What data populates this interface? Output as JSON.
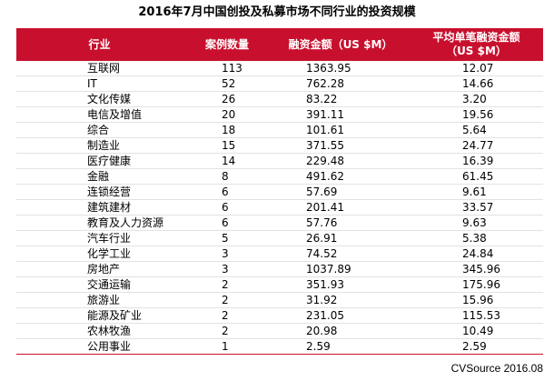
{
  "title": "2016年7月中国创投及私募市场不同行业的投资规模",
  "headers": {
    "industry": "行业",
    "cases": "案例数量",
    "amount": "融资金额（US $M）",
    "average": "平均单笔融资金额（US $M）"
  },
  "rows": [
    {
      "industry": "互联网",
      "cases": "113",
      "amount": "1363.95",
      "average": "12.07"
    },
    {
      "industry": "IT",
      "cases": "52",
      "amount": "762.28",
      "average": "14.66"
    },
    {
      "industry": "文化传媒",
      "cases": "26",
      "amount": "83.22",
      "average": "3.20"
    },
    {
      "industry": "电信及增值",
      "cases": "20",
      "amount": "391.11",
      "average": "19.56"
    },
    {
      "industry": "综合",
      "cases": "18",
      "amount": "101.61",
      "average": "5.64"
    },
    {
      "industry": "制造业",
      "cases": "15",
      "amount": "371.55",
      "average": "24.77"
    },
    {
      "industry": "医疗健康",
      "cases": "14",
      "amount": "229.48",
      "average": "16.39"
    },
    {
      "industry": "金融",
      "cases": "8",
      "amount": "491.62",
      "average": "61.45"
    },
    {
      "industry": "连锁经营",
      "cases": "6",
      "amount": "57.69",
      "average": "9.61"
    },
    {
      "industry": "建筑建材",
      "cases": "6",
      "amount": "201.41",
      "average": "33.57"
    },
    {
      "industry": "教育及人力资源",
      "cases": "6",
      "amount": "57.76",
      "average": "9.63"
    },
    {
      "industry": "汽车行业",
      "cases": "5",
      "amount": "26.91",
      "average": "5.38"
    },
    {
      "industry": "化学工业",
      "cases": "3",
      "amount": "74.52",
      "average": "24.84"
    },
    {
      "industry": "房地产",
      "cases": "3",
      "amount": "1037.89",
      "average": "345.96"
    },
    {
      "industry": "交通运输",
      "cases": "2",
      "amount": "351.93",
      "average": "175.96"
    },
    {
      "industry": "旅游业",
      "cases": "2",
      "amount": "31.92",
      "average": "15.96"
    },
    {
      "industry": "能源及矿业",
      "cases": "2",
      "amount": "231.05",
      "average": "115.53"
    },
    {
      "industry": "农林牧渔",
      "cases": "2",
      "amount": "20.98",
      "average": "10.49"
    },
    {
      "industry": "公用事业",
      "cases": "1",
      "amount": "2.59",
      "average": "2.59"
    }
  ],
  "source": "CVSource 2016.08",
  "colors": {
    "header_bg": "#c8102e",
    "header_text": "#ffffff",
    "row_divider": "#e2e2e2"
  }
}
